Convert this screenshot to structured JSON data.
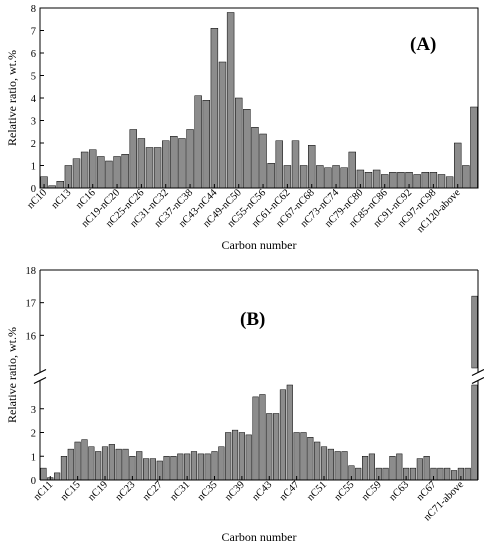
{
  "chart_data": [
    {
      "type": "bar",
      "panel_label": "(A)",
      "xlabel": "Carbon number",
      "ylabel": "Relative ratio, wt.%",
      "ylim": [
        0,
        8
      ],
      "yticks": [
        0,
        1,
        2,
        3,
        4,
        5,
        6,
        7,
        8
      ],
      "bar_color": "#8c8c8c",
      "x_tick_labels": [
        "nC10",
        "nC13",
        "nC16",
        "nC19-nC20",
        "nC25-nC26",
        "nC31-nC32",
        "nC37-nC38",
        "nC43-nC44",
        "nC49-nC50",
        "nC55-nC56",
        "nC61-nC62",
        "nC67-nC68",
        "nC73-nC74",
        "nC79-nC80",
        "nC85-nC86",
        "nC91-nC92",
        "nC97-nC98",
        "nC120-above"
      ],
      "x_tick_positions": [
        1,
        4,
        7,
        10,
        13,
        16,
        19,
        22,
        25,
        28,
        31,
        34,
        37,
        40,
        43,
        46,
        49,
        52
      ],
      "values": [
        0.5,
        0.1,
        0.3,
        1.0,
        1.3,
        1.6,
        1.7,
        1.4,
        1.2,
        1.4,
        1.5,
        2.6,
        2.2,
        1.8,
        1.8,
        2.1,
        2.3,
        2.2,
        2.6,
        4.1,
        3.9,
        7.1,
        5.6,
        7.8,
        4.0,
        3.5,
        2.7,
        2.4,
        1.1,
        2.1,
        1.0,
        2.1,
        1.0,
        1.9,
        1.0,
        0.9,
        1.0,
        0.9,
        1.6,
        0.8,
        0.7,
        0.8,
        0.6,
        0.7,
        0.7,
        0.7,
        0.6,
        0.7,
        0.7,
        0.6,
        0.5,
        2.0,
        1.0,
        3.6
      ]
    },
    {
      "type": "bar",
      "panel_label": "(B)",
      "xlabel": "Carbon number",
      "ylabel": "Relative ratio, wt.%",
      "axis_break": true,
      "ylim_lower": [
        0,
        4
      ],
      "ylim_upper": [
        15,
        18
      ],
      "yticks_lower": [
        0,
        1,
        2,
        3
      ],
      "yticks_upper": [
        16,
        17,
        18
      ],
      "bar_color": "#8c8c8c",
      "x_tick_labels": [
        "nC11",
        "nC15",
        "nC19",
        "nC23",
        "nC27",
        "nC31",
        "nC35",
        "nC39",
        "nC43",
        "nC47",
        "nC51",
        "nC55",
        "nC59",
        "nC63",
        "nC67",
        "nC71-above"
      ],
      "x_tick_positions": [
        2,
        6,
        10,
        14,
        18,
        22,
        26,
        30,
        34,
        38,
        42,
        46,
        50,
        54,
        58,
        62
      ],
      "values": [
        0.5,
        0.1,
        0.3,
        1.0,
        1.3,
        1.6,
        1.7,
        1.4,
        1.2,
        1.4,
        1.5,
        1.3,
        1.3,
        1.0,
        1.2,
        0.9,
        0.9,
        0.8,
        1.0,
        1.0,
        1.1,
        1.1,
        1.2,
        1.1,
        1.1,
        1.2,
        1.4,
        2.0,
        2.1,
        2.0,
        1.9,
        3.5,
        3.6,
        2.8,
        2.8,
        3.8,
        4.0,
        2.0,
        2.0,
        1.8,
        1.6,
        1.4,
        1.3,
        1.2,
        1.2,
        0.6,
        0.5,
        1.0,
        1.1,
        0.5,
        0.5,
        1.0,
        1.1,
        0.5,
        0.5,
        0.9,
        1.0,
        0.5,
        0.5,
        0.5,
        0.4,
        0.5,
        0.5,
        17.2
      ]
    }
  ]
}
